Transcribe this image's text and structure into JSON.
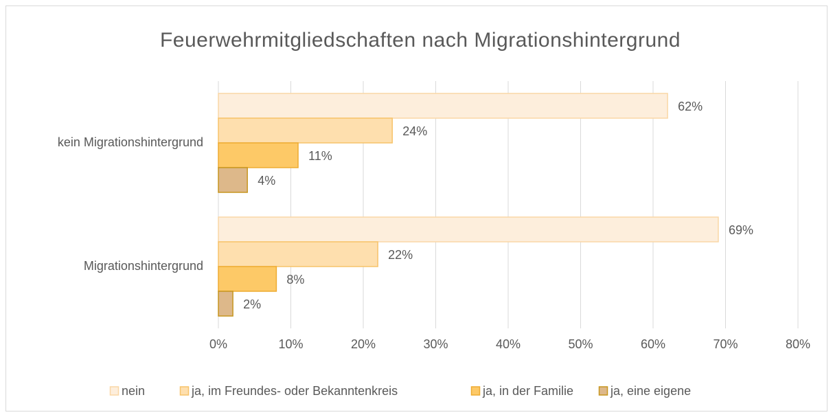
{
  "chart_data": {
    "type": "hbar",
    "title": "Feuerwehrmitgliedschaften nach Migrationshintergrund",
    "categories": [
      "kein Migrationshintergrund",
      "Migrationshintergrund"
    ],
    "series": [
      {
        "name": "nein",
        "color": "#fdeedc",
        "values": [
          62,
          69
        ],
        "value_labels": [
          "62%",
          "69%"
        ]
      },
      {
        "name": "ja, im Freundes- oder Bekanntenkreis",
        "color": "#fedfae",
        "values": [
          24,
          22
        ],
        "value_labels": [
          "24%",
          "22%"
        ]
      },
      {
        "name": "ja, in der Familie",
        "color": "#fdc967",
        "values": [
          11,
          8
        ],
        "value_labels": [
          "11%",
          "8%"
        ]
      },
      {
        "name": "ja, eine eigene",
        "color": "#ddb88a",
        "values": [
          4,
          2
        ],
        "value_labels": [
          "4%",
          "2%"
        ]
      }
    ],
    "xlim": [
      0,
      80
    ],
    "xticks": [
      {
        "value": 0,
        "label": "0%"
      },
      {
        "value": 10,
        "label": "10%"
      },
      {
        "value": 20,
        "label": "20%"
      },
      {
        "value": 30,
        "label": "30%"
      },
      {
        "value": 40,
        "label": "40%"
      },
      {
        "value": 50,
        "label": "50%"
      },
      {
        "value": 60,
        "label": "60%"
      },
      {
        "value": 70,
        "label": "70%"
      },
      {
        "value": 80,
        "label": "80%"
      }
    ],
    "grid": true,
    "legend": "bottom"
  }
}
